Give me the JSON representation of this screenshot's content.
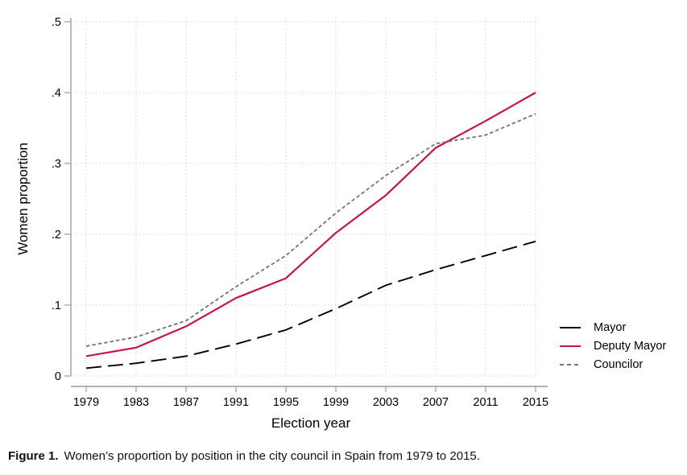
{
  "figure": {
    "caption_label": "Figure 1.",
    "caption_text": "Women’s proportion by position in the city council in Spain from 1979 to 2015."
  },
  "chart_data": {
    "type": "line",
    "title": "",
    "xlabel": "Election year",
    "ylabel": "Women proportion",
    "x": [
      1979,
      1983,
      1987,
      1991,
      1995,
      1999,
      2003,
      2007,
      2011,
      2015
    ],
    "x_tick_labels": [
      "1979",
      "1983",
      "1987",
      "1991",
      "1995",
      "1999",
      "2003",
      "2007",
      "2011",
      "2015"
    ],
    "y_ticks": [
      0,
      0.1,
      0.2,
      0.3,
      0.4,
      0.5
    ],
    "y_tick_labels": [
      "0",
      ".1",
      ".2",
      ".3",
      ".4",
      ".5"
    ],
    "ylim": [
      0,
      0.5
    ],
    "grid": "dotted-both-directions",
    "legend_position": "right-outside-lower",
    "colors": {
      "mayor": "#000000",
      "deputy_mayor": "#c4134e",
      "councilor": "#737373",
      "gridline": "#cccccc",
      "axis": "#a8a8a8"
    },
    "series": [
      {
        "name": "Mayor",
        "color": "#000000",
        "dash": "long-dash",
        "values": [
          0.011,
          0.018,
          0.028,
          0.045,
          0.065,
          0.095,
          0.128,
          0.15,
          0.17,
          0.19
        ]
      },
      {
        "name": "Deputy Mayor",
        "color": "#c4134e",
        "dash": "solid",
        "values": [
          0.028,
          0.04,
          0.07,
          0.11,
          0.138,
          0.202,
          0.255,
          0.322,
          0.36,
          0.4
        ]
      },
      {
        "name": "Councilor",
        "color": "#737373",
        "dash": "short-dash",
        "values": [
          0.042,
          0.055,
          0.078,
          0.126,
          0.17,
          0.23,
          0.283,
          0.328,
          0.34,
          0.37
        ]
      }
    ]
  }
}
